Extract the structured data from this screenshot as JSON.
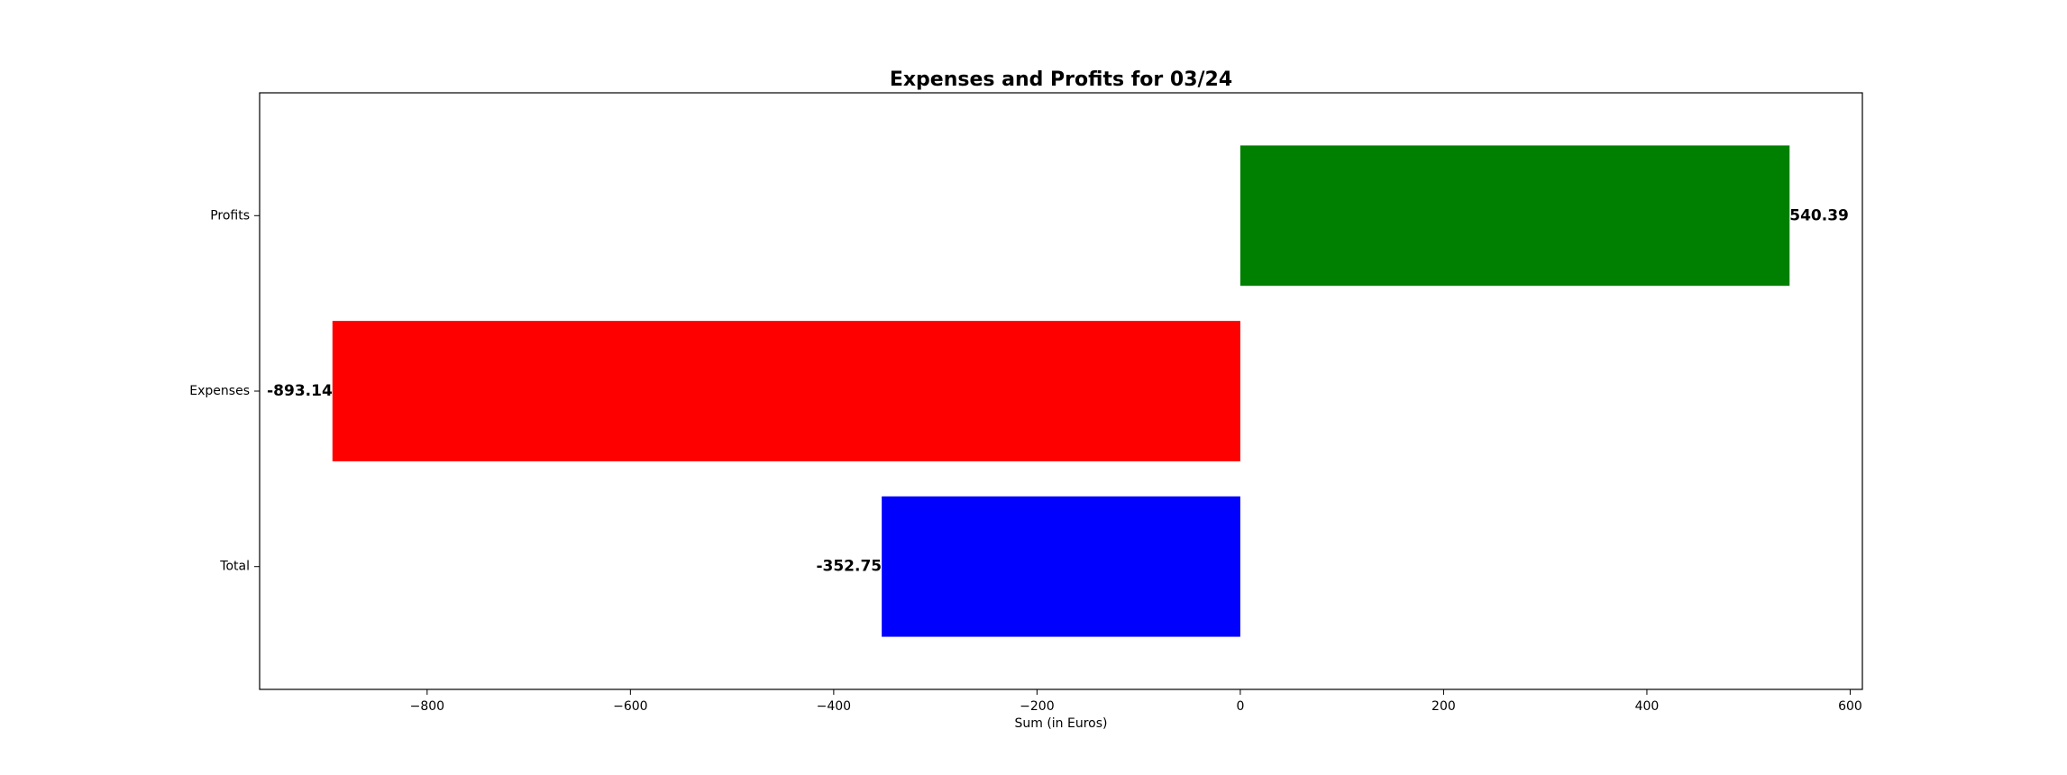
{
  "chart_data": {
    "type": "bar",
    "orientation": "horizontal",
    "title": "Expenses and Profits for 03/24",
    "xlabel": "Sum (in Euros)",
    "ylabel": "",
    "categories": [
      "Total",
      "Expenses",
      "Profits"
    ],
    "values": [
      -352.75,
      -893.14,
      540.39
    ],
    "value_labels": [
      "-352.75",
      "-893.14",
      "540.39"
    ],
    "colors": [
      "#0000ff",
      "#ff0000",
      "#008000"
    ],
    "xlim": [
      -964.8,
      612.0
    ],
    "xticks": [
      -800,
      -600,
      -400,
      -200,
      0,
      200,
      400,
      600
    ],
    "xtick_labels": [
      "−800",
      "−600",
      "−400",
      "−200",
      "0",
      "200",
      "400",
      "600"
    ],
    "grid": false,
    "legend": false
  }
}
